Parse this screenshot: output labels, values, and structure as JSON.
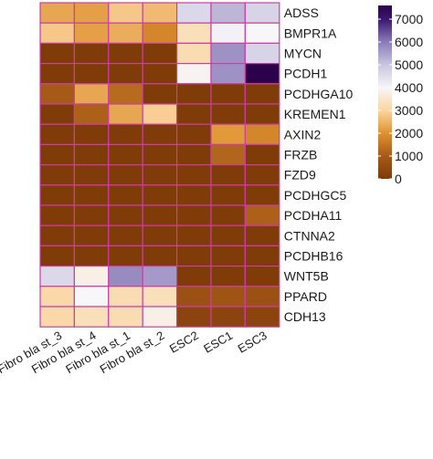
{
  "chart_data": {
    "type": "heatmap",
    "title": "",
    "xlabel": "",
    "ylabel": "",
    "columns": [
      "Fibroblast_3",
      "Fibroblast_4",
      "Fibroblast_1",
      "Fibroblast_2",
      "ESC2",
      "ESC1",
      "ESC3"
    ],
    "column_labels": [
      "Fibro bla st_3",
      "Fibro bla st_4",
      "Fibro bla st_1",
      "Fibro bla st_2",
      "ESC2",
      "ESC1",
      "ESC3"
    ],
    "rows": [
      "ADSS",
      "BMPR1A",
      "MYCN",
      "PCDH1",
      "PCDHGA10",
      "KREMEN1",
      "AXIN2",
      "FRZB",
      "FZD9",
      "PCDHGC5",
      "PCDHA11",
      "CTNNA2",
      "PCDHB16",
      "WNT5B",
      "PPARD",
      "CDH13"
    ],
    "values": [
      [
        2300,
        2200,
        2800,
        2600,
        4600,
        5200,
        4700
      ],
      [
        2800,
        2200,
        2400,
        1800,
        3300,
        4100,
        4000
      ],
      [
        0,
        0,
        0,
        0,
        3200,
        5700,
        4700
      ],
      [
        0,
        0,
        0,
        0,
        3900,
        5700,
        7600
      ],
      [
        1000,
        2300,
        1300,
        0,
        0,
        0,
        0
      ],
      [
        0,
        1100,
        2300,
        2900,
        0,
        0,
        0
      ],
      [
        0,
        0,
        0,
        0,
        0,
        2100,
        1800
      ],
      [
        0,
        0,
        0,
        0,
        0,
        1200,
        0
      ],
      [
        0,
        0,
        0,
        0,
        0,
        0,
        0
      ],
      [
        0,
        0,
        0,
        0,
        0,
        0,
        0
      ],
      [
        0,
        0,
        0,
        0,
        0,
        0,
        1100
      ],
      [
        0,
        0,
        0,
        0,
        0,
        0,
        0
      ],
      [
        0,
        0,
        0,
        0,
        0,
        0,
        0
      ],
      [
        4600,
        3800,
        5800,
        5600,
        0,
        0,
        0
      ],
      [
        3100,
        4000,
        3200,
        3300,
        700,
        800,
        700
      ],
      [
        3100,
        3300,
        3200,
        3800,
        300,
        300,
        300
      ]
    ],
    "value_range": [
      0,
      7600
    ],
    "colorbar_ticks": [
      7000,
      6000,
      5000,
      4000,
      3000,
      2000,
      1000,
      0
    ],
    "colormap": "brown-orange-white-purple (PuOr diverging)",
    "color_stops": [
      {
        "value": 0,
        "color": "#7f3b08"
      },
      {
        "value": 1000,
        "color": "#a65a18"
      },
      {
        "value": 2000,
        "color": "#df922f"
      },
      {
        "value": 3000,
        "color": "#fbd5a0"
      },
      {
        "value": 4000,
        "color": "#f7f6f9"
      },
      {
        "value": 5000,
        "color": "#c9c5df"
      },
      {
        "value": 6000,
        "color": "#8b7cb8"
      },
      {
        "value": 7000,
        "color": "#3a1870"
      },
      {
        "value": 7600,
        "color": "#2d004b"
      }
    ],
    "cell_border_color": "#cc3ea3",
    "legend": "right, colorbar",
    "grid": false
  }
}
